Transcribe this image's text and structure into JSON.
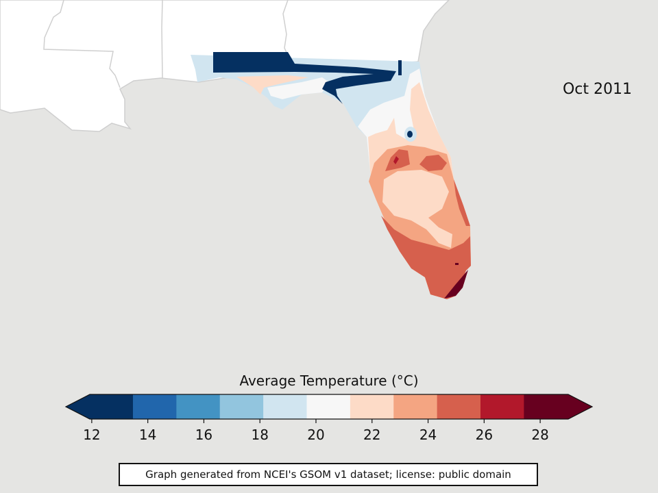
{
  "date_label": "Oct 2011",
  "colorbar": {
    "title": "Average Temperature (°C)",
    "tick_labels": [
      "12",
      "14",
      "16",
      "18",
      "20",
      "22",
      "24",
      "26",
      "28"
    ],
    "tick_values": [
      12,
      14,
      16,
      18,
      20,
      22,
      24,
      26,
      28
    ],
    "range": [
      11.93,
      29.0
    ],
    "bins": [
      {
        "from": 11.93,
        "to": 13.47,
        "color": "#053061"
      },
      {
        "from": 13.47,
        "to": 15.02,
        "color": "#2166ac"
      },
      {
        "from": 15.02,
        "to": 16.57,
        "color": "#4393c3"
      },
      {
        "from": 16.57,
        "to": 18.12,
        "color": "#92c5de"
      },
      {
        "from": 18.12,
        "to": 19.67,
        "color": "#d1e5f0"
      },
      {
        "from": 19.67,
        "to": 21.22,
        "color": "#f7f7f7"
      },
      {
        "from": 21.22,
        "to": 22.77,
        "color": "#fddbc7"
      },
      {
        "from": 22.77,
        "to": 24.32,
        "color": "#f4a582"
      },
      {
        "from": 24.32,
        "to": 25.87,
        "color": "#d6604d"
      },
      {
        "from": 25.87,
        "to": 27.42,
        "color": "#b2182b"
      },
      {
        "from": 27.42,
        "to": 29.0,
        "color": "#67001f"
      }
    ],
    "under_color": "#053061",
    "over_color": "#67001f",
    "extend": "both"
  },
  "credit_text": "Graph generated from NCEI's GSOM v1 dataset; license: public domain",
  "map_colors": {
    "ocean": "#e5e5e3",
    "land": "#ffffff",
    "border": "#cfcfcf"
  }
}
